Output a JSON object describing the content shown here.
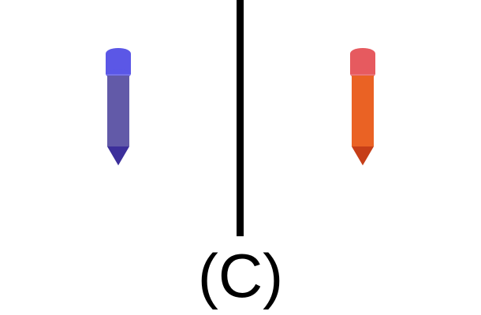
{
  "panel": {
    "label": "(C)"
  },
  "crayons": [
    {
      "icon": "crayon-icon",
      "cap_color": "#5b57e6",
      "body_color": "#625aa8",
      "tip_color": "#3c2f9b"
    },
    {
      "icon": "crayon-icon",
      "cap_color": "#e65a5f",
      "body_color": "#ea6224",
      "tip_color": "#c63e18"
    }
  ],
  "divider_color": "#000000"
}
